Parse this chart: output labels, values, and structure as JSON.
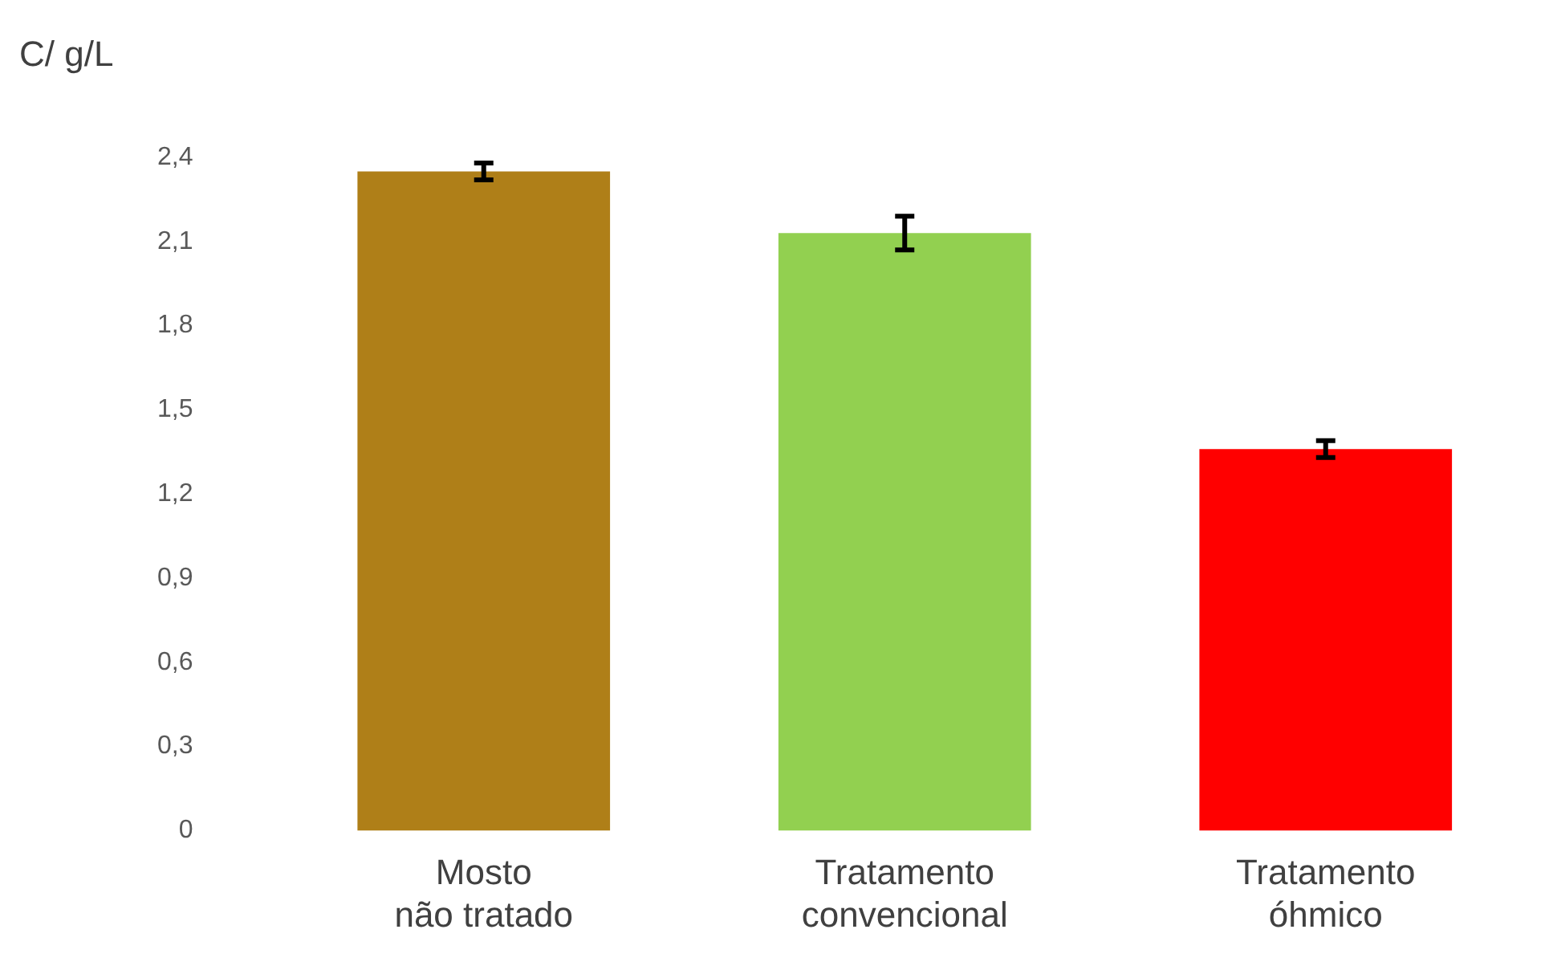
{
  "chart_data": {
    "type": "bar",
    "ylabel": "C/ g/L",
    "categories": [
      "Mosto não tratado",
      "Tratamento convencional",
      "Tratamento óhmico"
    ],
    "values": [
      2.35,
      2.13,
      1.36
    ],
    "errors": [
      0.03,
      0.06,
      0.03
    ],
    "colors": [
      "#af7f18",
      "#92d050",
      "#ff0000"
    ],
    "ylim": [
      0,
      2.4
    ],
    "yticks": [
      {
        "value": 0,
        "label": "0"
      },
      {
        "value": 0.3,
        "label": "0,3"
      },
      {
        "value": 0.6,
        "label": "0,6"
      },
      {
        "value": 0.9,
        "label": "0,9"
      },
      {
        "value": 1.2,
        "label": "1,2"
      },
      {
        "value": 1.5,
        "label": "1,5"
      },
      {
        "value": 1.8,
        "label": "1,8"
      },
      {
        "value": 2.1,
        "label": "2,1"
      },
      {
        "value": 2.4,
        "label": "2,4"
      }
    ],
    "grid": false,
    "legend": false
  }
}
